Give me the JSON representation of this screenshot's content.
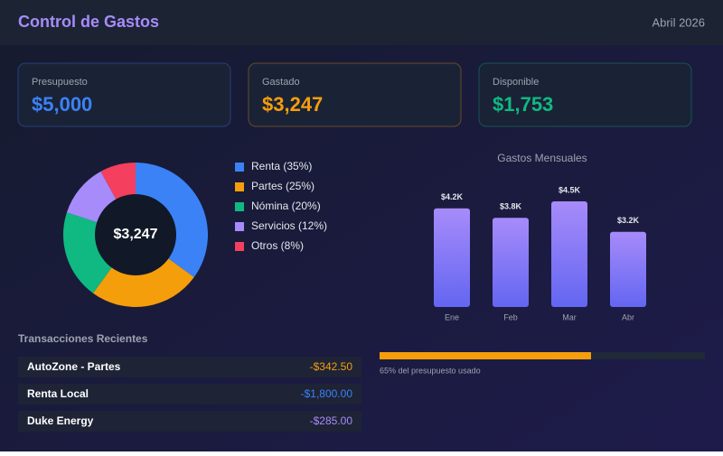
{
  "header": {
    "title": "Control de Gastos",
    "date": "Abril 2026"
  },
  "cards": [
    {
      "label": "Presupuesto",
      "value": "$5,000",
      "color": "#3b82f6"
    },
    {
      "label": "Gastado",
      "value": "$3,247",
      "color": "#f59e0b"
    },
    {
      "label": "Disponible",
      "value": "$1,753",
      "color": "#10b981"
    }
  ],
  "chart_data": [
    {
      "type": "pie",
      "center_label": "$3,247",
      "categories": [
        "Renta (35%)",
        "Partes (25%)",
        "Nómina (20%)",
        "Servicios (12%)",
        "Otros (8%)"
      ],
      "values": [
        35,
        25,
        20,
        12,
        8
      ],
      "colors": [
        "#3b82f6",
        "#f59e0b",
        "#10b981",
        "#a78bfa",
        "#f43f5e"
      ]
    },
    {
      "type": "bar",
      "title": "Gastos Mensuales",
      "categories": [
        "Ene",
        "Feb",
        "Mar",
        "Abr"
      ],
      "values": [
        4200,
        3800,
        4500,
        3200
      ],
      "value_labels": [
        "$4.2K",
        "$3.8K",
        "$4.5K",
        "$3.2K"
      ],
      "ylim": [
        0,
        5000
      ]
    }
  ],
  "transactions": {
    "title": "Transacciones Recientes",
    "rows": [
      {
        "name": "AutoZone - Partes",
        "amount": "-$342.50",
        "color": "#f59e0b"
      },
      {
        "name": "Renta Local",
        "amount": "-$1,800.00",
        "color": "#3b82f6"
      },
      {
        "name": "Duke Energy",
        "amount": "-$285.00",
        "color": "#a78bfa"
      }
    ]
  },
  "progress": {
    "value": 65,
    "label": "65% del presupuesto usado",
    "color": "#f59e0b"
  }
}
